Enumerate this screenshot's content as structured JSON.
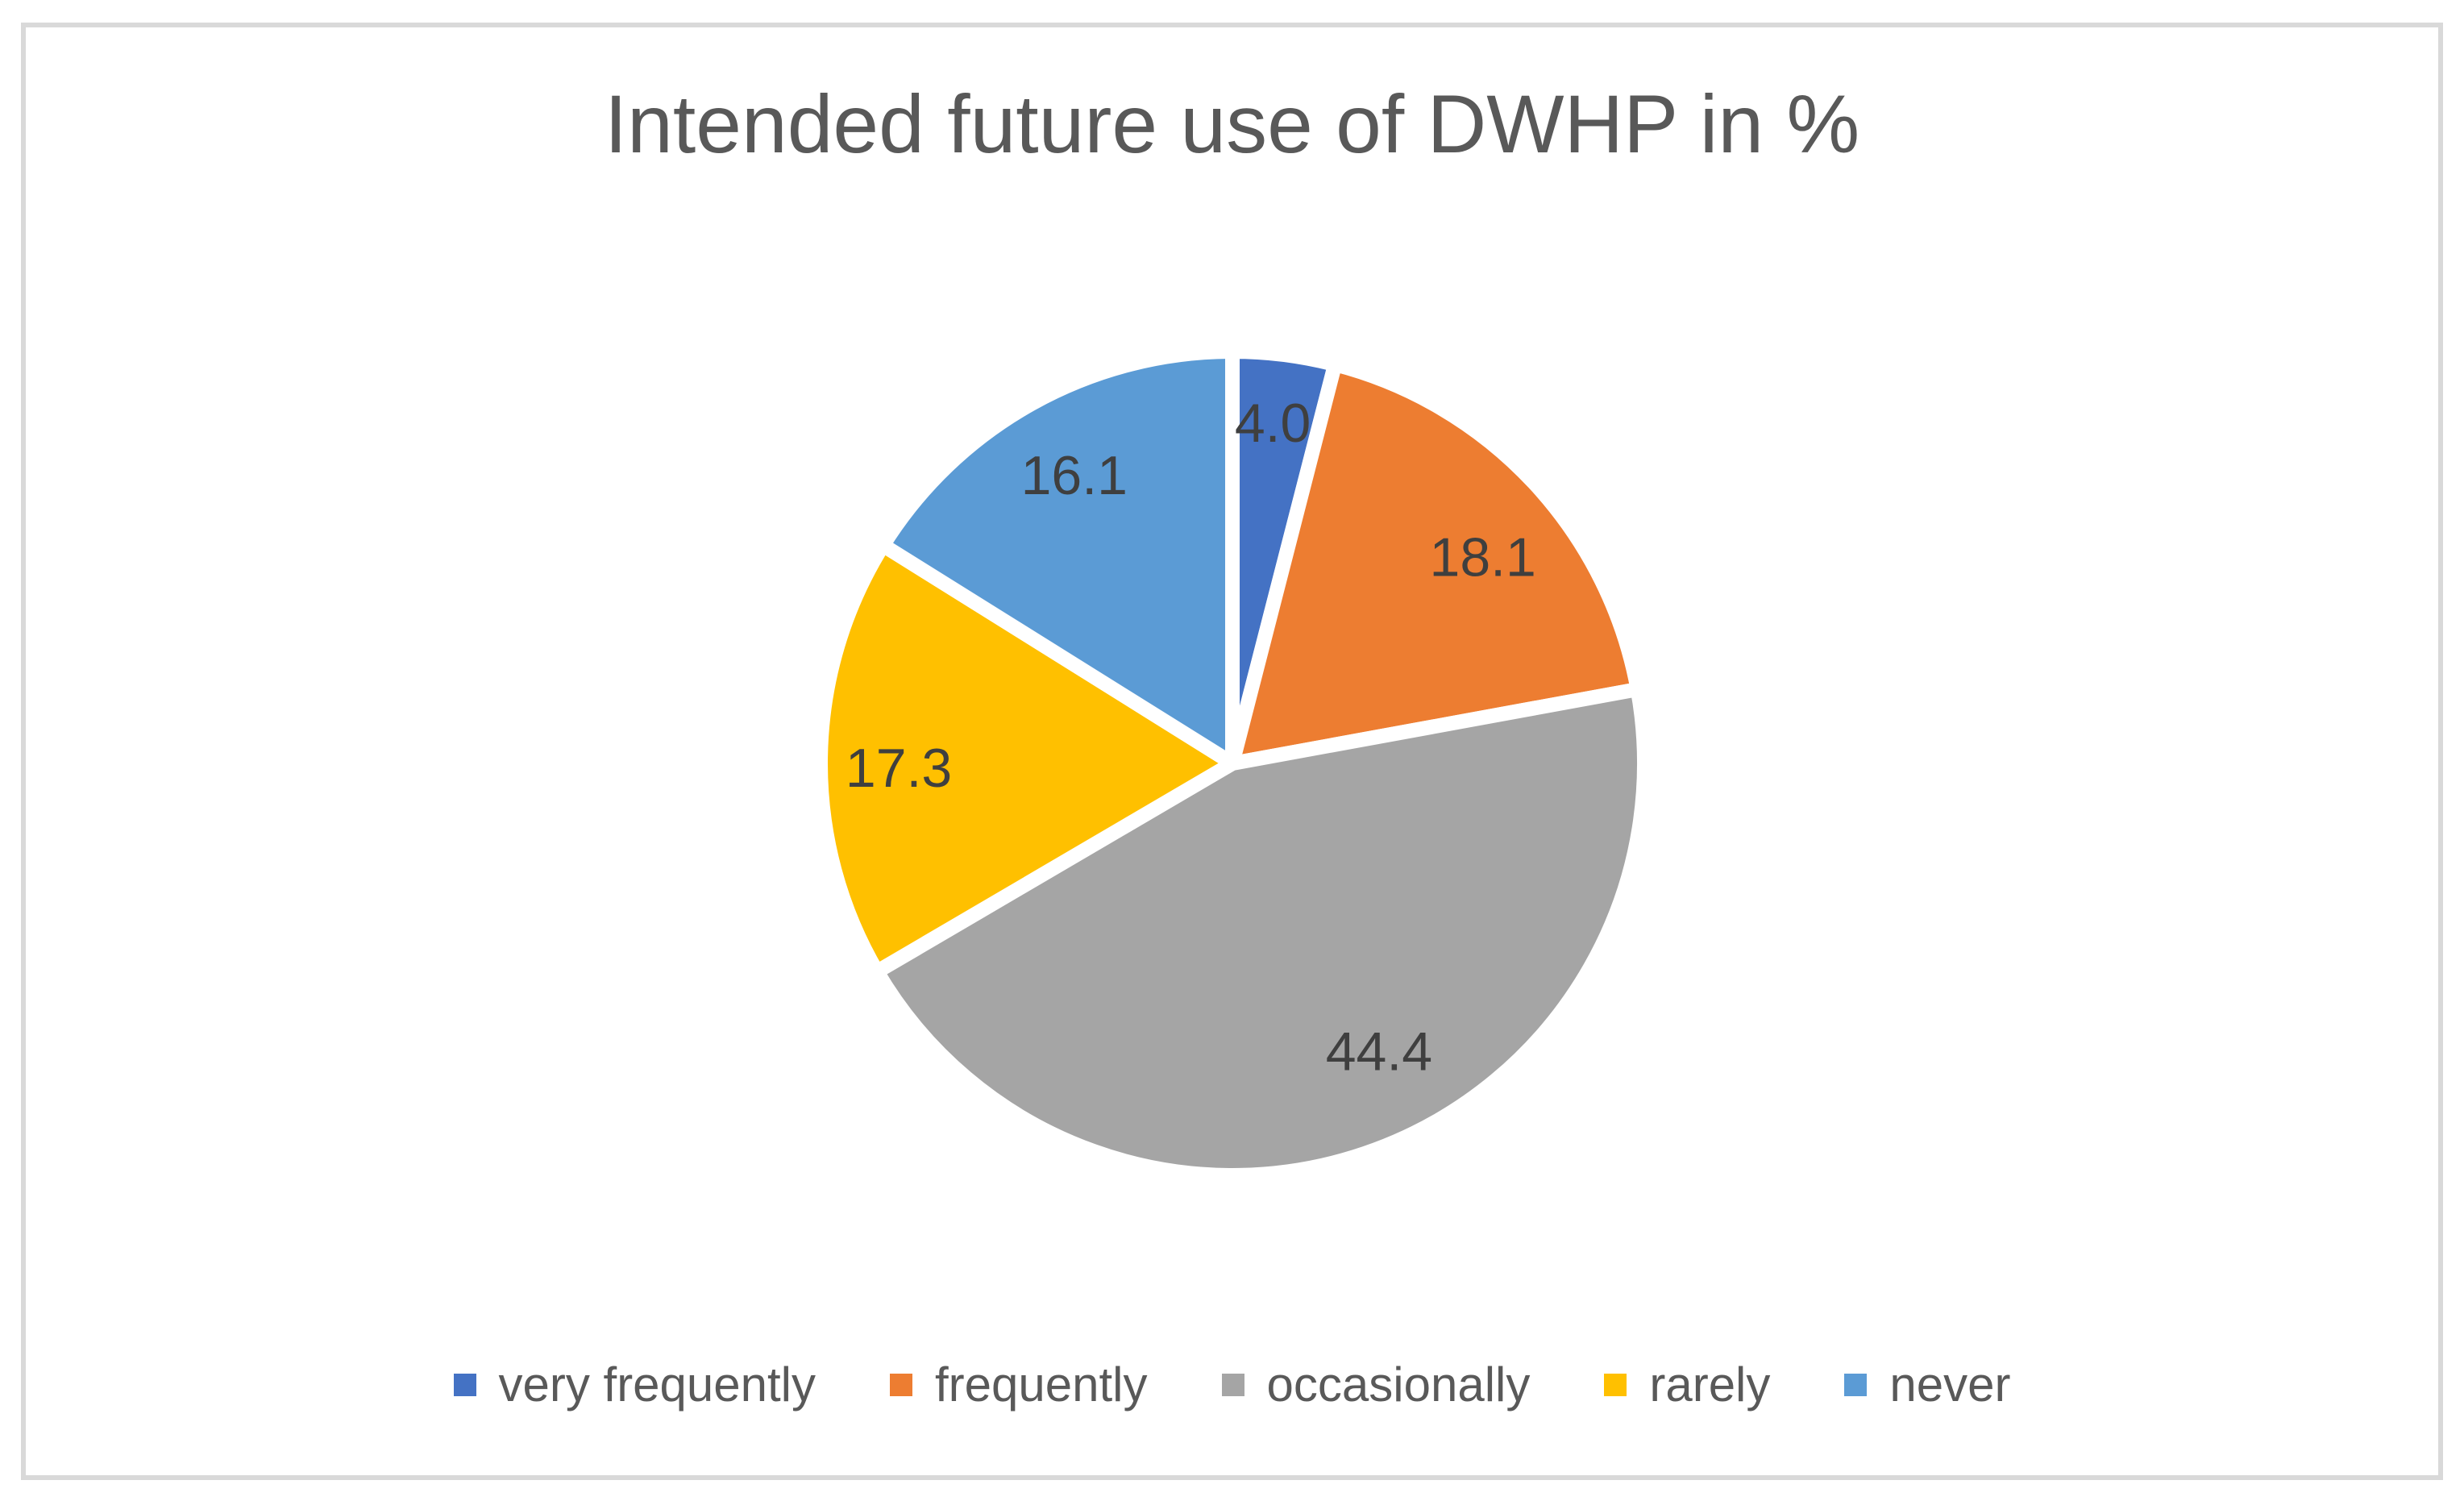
{
  "figure": {
    "background": "#FFFFFF",
    "border_color": "#D9D9D9"
  },
  "title": {
    "text": "Intended future use of DWHP in %",
    "color": "#595959"
  },
  "chart_data": {
    "type": "pie",
    "title": "Intended future use of DWHP in %",
    "categories": [
      "very frequently",
      "frequently",
      "occasionally",
      "rarely",
      "never"
    ],
    "values": [
      4.0,
      18.1,
      44.4,
      17.3,
      16.1
    ],
    "data_labels": [
      "4.0",
      "18.1",
      "44.4",
      "17.3",
      "16.1"
    ],
    "colors": [
      "#4472C4",
      "#ED7D31",
      "#A5A5A5",
      "#FFC000",
      "#5B9BD5"
    ],
    "slice_border_color": "#FFFFFF",
    "data_label_color": "#3F3F3F",
    "start_angle_deg": 0,
    "direction": "clockwise",
    "legend_position": "bottom",
    "label_offsets_r": [
      [
        0.098,
        -0.826
      ],
      [
        0.608,
        -0.5
      ],
      [
        0.356,
        0.7
      ],
      [
        -0.81,
        0.012
      ],
      [
        -0.384,
        -0.699
      ]
    ]
  },
  "legend": {
    "items": [
      {
        "label": "very frequently",
        "color": "#4472C4"
      },
      {
        "label": "frequently",
        "color": "#ED7D31"
      },
      {
        "label": "occasionally",
        "color": "#A5A5A5"
      },
      {
        "label": "rarely",
        "color": "#FFC000"
      },
      {
        "label": "never",
        "color": "#5B9BD5"
      }
    ]
  }
}
